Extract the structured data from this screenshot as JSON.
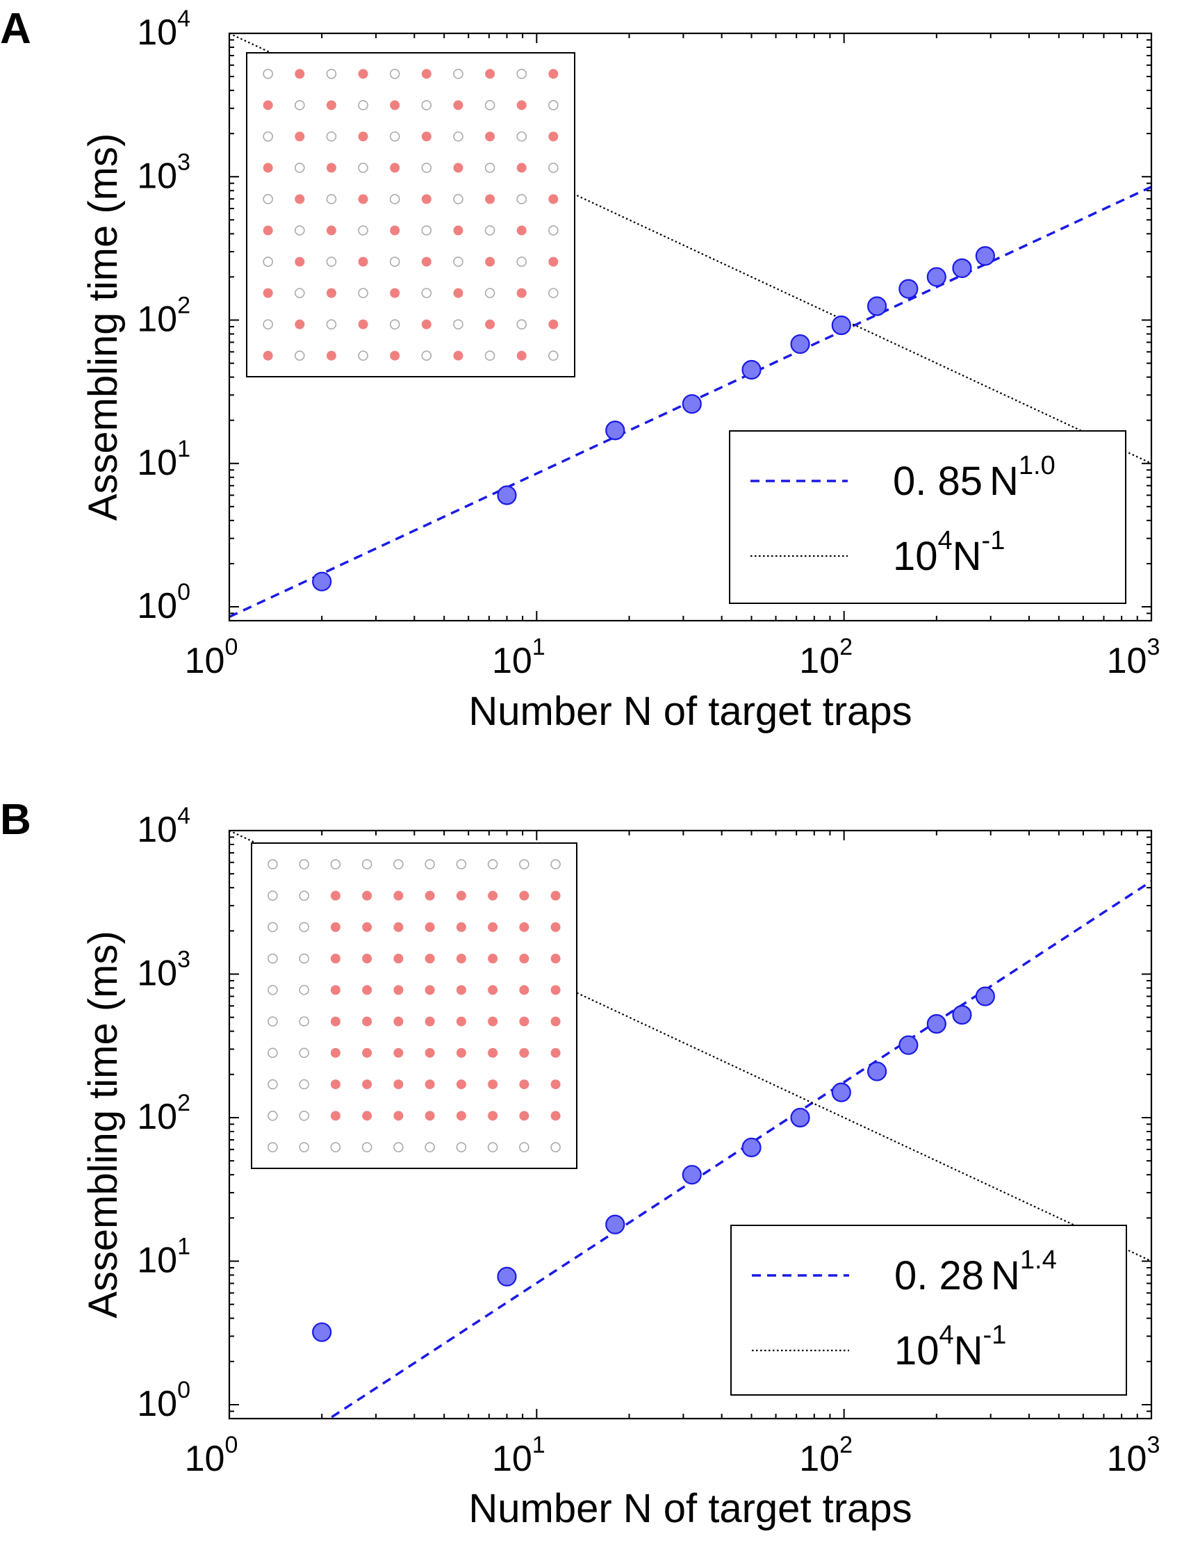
{
  "chart_data": [
    {
      "panel": "A",
      "type": "scatter",
      "xscale": "log",
      "yscale": "log",
      "xlim": [
        1,
        1000
      ],
      "ylim": [
        0.8,
        10000
      ],
      "xlabel": "Number N of target traps",
      "ylabel": "Assembling time (ms)",
      "xticks": [
        {
          "base": "10",
          "exp": "0"
        },
        {
          "base": "10",
          "exp": "1"
        },
        {
          "base": "10",
          "exp": "2"
        },
        {
          "base": "10",
          "exp": "3"
        }
      ],
      "yticks": [
        {
          "base": "10",
          "exp": "0"
        },
        {
          "base": "10",
          "exp": "1"
        },
        {
          "base": "10",
          "exp": "2"
        },
        {
          "base": "10",
          "exp": "3"
        },
        {
          "base": "10",
          "exp": "4"
        }
      ],
      "series": [
        {
          "name": "data",
          "style": "markers",
          "color": "#7b7bf5",
          "edge": "#1a1ae6",
          "x": [
            2,
            8,
            18,
            32,
            50,
            72,
            98,
            128,
            162,
            200,
            242,
            288
          ],
          "y": [
            1.5,
            6,
            17,
            26,
            45,
            68,
            92,
            125,
            165,
            200,
            230,
            280
          ]
        },
        {
          "name": "fit",
          "style": "dashed",
          "color": "#1a1ae6",
          "coef": 0.85,
          "power": 1.0,
          "legend": {
            "coef": "0. 85",
            "var": "N",
            "exp": "1.0"
          }
        },
        {
          "name": "reference",
          "style": "dotted",
          "color": "#000000",
          "coef": 10000,
          "power": -1,
          "legend": {
            "base": "10",
            "base_exp": "4",
            "var": "N",
            "exp": "-1"
          }
        }
      ],
      "legend_position": "lower-right",
      "inset": {
        "rows": 10,
        "cols": 10,
        "pattern": "checkerboard",
        "filled_color": "#f08080",
        "empty_color": "#aaaaaa"
      }
    },
    {
      "panel": "B",
      "type": "scatter",
      "xscale": "log",
      "yscale": "log",
      "xlim": [
        1,
        1000
      ],
      "ylim": [
        0.8,
        10000
      ],
      "xlabel": "Number N of target traps",
      "ylabel": "Assembling time (ms)",
      "xticks": [
        {
          "base": "10",
          "exp": "0"
        },
        {
          "base": "10",
          "exp": "1"
        },
        {
          "base": "10",
          "exp": "2"
        },
        {
          "base": "10",
          "exp": "3"
        }
      ],
      "yticks": [
        {
          "base": "10",
          "exp": "0"
        },
        {
          "base": "10",
          "exp": "1"
        },
        {
          "base": "10",
          "exp": "2"
        },
        {
          "base": "10",
          "exp": "3"
        },
        {
          "base": "10",
          "exp": "4"
        }
      ],
      "series": [
        {
          "name": "data",
          "style": "markers",
          "color": "#7b7bf5",
          "edge": "#1a1ae6",
          "x": [
            2,
            8,
            18,
            32,
            50,
            72,
            98,
            128,
            162,
            200,
            242,
            288
          ],
          "y": [
            3.2,
            7.8,
            18,
            40,
            62,
            100,
            150,
            210,
            320,
            450,
            520,
            700
          ]
        },
        {
          "name": "fit",
          "style": "dashed",
          "color": "#1a1ae6",
          "coef": 0.28,
          "power": 1.4,
          "legend": {
            "coef": "0. 28",
            "var": "N",
            "exp": "1.4"
          }
        },
        {
          "name": "reference",
          "style": "dotted",
          "color": "#000000",
          "coef": 10000,
          "power": -1,
          "legend": {
            "base": "10",
            "base_exp": "4",
            "var": "N",
            "exp": "-1"
          }
        }
      ],
      "legend_position": "lower-right",
      "inset": {
        "rows": 10,
        "cols": 10,
        "pattern": "center-block",
        "block_rows": [
          1,
          8
        ],
        "block_cols": [
          2,
          9
        ],
        "filled_color": "#f08080",
        "empty_color": "#aaaaaa"
      }
    }
  ]
}
